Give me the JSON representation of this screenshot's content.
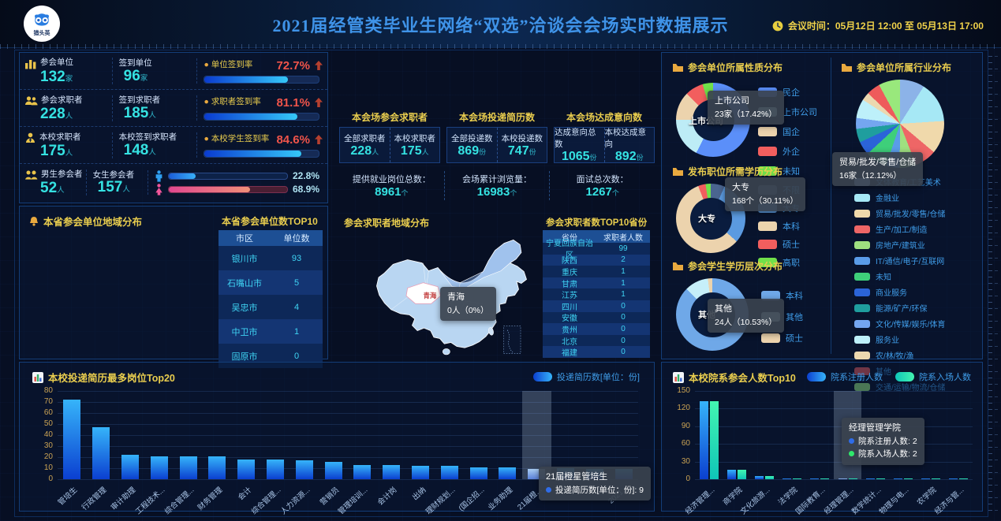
{
  "header": {
    "logo_text": "猎头英",
    "title": "2021届经管类毕业生网络“双选”洽谈会会场实时数据展示",
    "meeting_time": "会议时间：05月12日 12:00 至 05月13日 17:00"
  },
  "stats": {
    "rows": [
      {
        "icon": "chart-bars-icon",
        "label1": "参会单位",
        "value1": "132",
        "unit1": "家",
        "label2": "签到单位",
        "value2": "96",
        "unit2": "家",
        "rate_label": "单位签到率",
        "rate": "72.7%",
        "bar_pct": 72.7
      },
      {
        "icon": "users-icon",
        "label1": "参会求职者",
        "value1": "228",
        "unit1": "人",
        "label2": "签到求职者",
        "value2": "185",
        "unit2": "人",
        "rate_label": "求职者签到率",
        "rate": "81.1%",
        "bar_pct": 81.1
      },
      {
        "icon": "person-tie-icon",
        "label1": "本校求职者",
        "value1": "175",
        "unit1": "人",
        "label2": "本校签到求职者",
        "value2": "148",
        "unit2": "人",
        "rate_label": "本校学生签到率",
        "rate": "84.6%",
        "bar_pct": 84.6
      },
      {
        "icon": "male-female-icon",
        "label1": "男生参会者",
        "value1": "52",
        "unit1": "人",
        "label2": "女生参会者",
        "value2": "157",
        "unit2": "人",
        "gender": {
          "male_pct": "22.8%",
          "male_bar": 22.8,
          "female_pct": "68.9%",
          "female_bar": 68.9
        }
      }
    ]
  },
  "session": {
    "groups": [
      {
        "title": "本会场参会求职者",
        "items": [
          {
            "label": "全部求职者",
            "value": "228",
            "unit": "人"
          },
          {
            "label": "本校求职者",
            "value": "175",
            "unit": "人"
          }
        ]
      },
      {
        "title": "本会场投递简历数",
        "items": [
          {
            "label": "全部投递数",
            "value": "869",
            "unit": "份"
          },
          {
            "label": "本校投递数",
            "value": "747",
            "unit": "份"
          }
        ]
      },
      {
        "title": "本会场达成意向数",
        "items": [
          {
            "label": "达成意向总数",
            "value": "1065",
            "unit": "份"
          },
          {
            "label": "本校达成意向",
            "value": "892",
            "unit": "份"
          }
        ]
      }
    ],
    "totals": [
      {
        "label": "提供就业岗位总数：",
        "value": "8961",
        "unit": "个"
      },
      {
        "label": "会场累计浏览量：",
        "value": "16983",
        "unit": "个"
      },
      {
        "label": "面试总次数：",
        "value": "1267",
        "unit": "个"
      }
    ]
  },
  "region_panel": {
    "title": "本省参会单位地域分布",
    "table_title": "本省参会单位数TOP10"
  },
  "map_panel": {
    "title": "参会求职者地域分布",
    "region_label": "青海",
    "table_title": "参会求职者数TOP10省份",
    "tooltip_title": "青海",
    "tooltip_value": "0人（0%）"
  },
  "nature_panel": {
    "title": "参会单位所属性质分布",
    "center_label": "上市公司",
    "tooltip_title": "上市公司",
    "tooltip_value": "23家（17.42%）"
  },
  "degree_panel": {
    "title": "发布职位所需学历分布",
    "center_label": "大专",
    "tooltip_title": "大专",
    "tooltip_value": "168个（30.11%）"
  },
  "student_panel": {
    "title": "参会学生学历层次分布",
    "center_label": "其他",
    "tooltip_title": "其他",
    "tooltip_value": "24人（10.53%）"
  },
  "industry_panel": {
    "title": "参会单位所属行业分布",
    "tooltip_title": "贸易/批发/零售/仓储",
    "tooltip_value": "16家（12.12%）"
  },
  "jobs_panel": {
    "title": "本校投递简历最多岗位Top20",
    "tooltip_title": "21届橙星管培生",
    "tooltip_value": "投递简历数[单位：份]: 9"
  },
  "faculty_panel": {
    "title": "本校院系参会人数Top10",
    "tooltip_title": "经理管理学院",
    "tooltip_lines": [
      "院系注册人数: 2",
      "院系入场人数: 2"
    ]
  },
  "chart_data": [
    {
      "id": "region-table",
      "type": "table",
      "title": "本省参会单位数TOP10",
      "columns": [
        "市区",
        "单位数"
      ],
      "rows": [
        [
          "银川市",
          93
        ],
        [
          "石嘴山市",
          5
        ],
        [
          "吴忠市",
          4
        ],
        [
          "中卫市",
          1
        ],
        [
          "固原市",
          0
        ]
      ]
    },
    {
      "id": "province-table",
      "type": "table",
      "title": "参会求职者数TOP10省份",
      "columns": [
        "省份",
        "求职者人数"
      ],
      "rows": [
        [
          "宁夏回族自治区",
          99
        ],
        [
          "陕西",
          2
        ],
        [
          "重庆",
          1
        ],
        [
          "甘肃",
          1
        ],
        [
          "江苏",
          1
        ],
        [
          "四川",
          0
        ],
        [
          "安徽",
          0
        ],
        [
          "贵州",
          0
        ],
        [
          "北京",
          0
        ],
        [
          "福建",
          0
        ]
      ]
    },
    {
      "id": "unit-nature",
      "type": "pie",
      "title": "参会单位所属性质分布",
      "donut": true,
      "labels": [
        "民企",
        "上市公司",
        "国企",
        "外企",
        "未知"
      ],
      "values": [
        57.5,
        17.42,
        12.5,
        8,
        4.58
      ],
      "colors": [
        "#5b8ff9",
        "#bdecf6",
        "#ecd3ad",
        "#f25e5e",
        "#71e04a"
      ],
      "annotation": "上市公司 23家（17.42%）"
    },
    {
      "id": "job-degree",
      "type": "pie",
      "title": "发布职位所需学历分布",
      "donut": true,
      "labels": [
        "不限",
        "大专",
        "本科",
        "硕士",
        "高职"
      ],
      "values": [
        6.5,
        30.11,
        57.5,
        3.5,
        2.39
      ],
      "colors": [
        "#4a6590",
        "#5b9ae0",
        "#ecd3ad",
        "#f25e5e",
        "#71e04a"
      ],
      "annotation": "大专 168个（30.11%）"
    },
    {
      "id": "student-degree",
      "type": "pie",
      "title": "参会学生学历层次分布",
      "donut": true,
      "labels": [
        "本科",
        "其他",
        "硕士"
      ],
      "values": [
        87.5,
        10.53,
        1.97
      ],
      "colors": [
        "#6fa8e8",
        "#c6eff9",
        "#ecd3ad"
      ],
      "annotation": "其他 24人（10.53%）"
    },
    {
      "id": "unit-industry",
      "type": "pie",
      "title": "参会单位所属行业分布",
      "donut": false,
      "labels": [
        "文体教育/工艺美术",
        "金融业",
        "贸易/批发/零售/仓储",
        "生产/加工/制造",
        "房地产/建筑业",
        "IT/通信/电子/互联网",
        "未知",
        "商业服务",
        "能源/矿产/环保",
        "文化/传媒/娱乐/体育",
        "服务业",
        "农/林/牧/渔",
        "其他",
        "交通/运输/物流/仓储"
      ],
      "values": [
        9,
        15,
        12.12,
        8,
        6,
        5,
        8,
        5,
        5,
        4,
        7,
        3,
        5,
        7.88
      ],
      "colors": [
        "#8cb3e8",
        "#a6e8f5",
        "#f0d9ab",
        "#ee6666",
        "#9fe080",
        "#5a9ce8",
        "#3ecf7a",
        "#2b64d8",
        "#1f9e9e",
        "#74a6f0",
        "#bdf0fa",
        "#ecd8b0",
        "#ee5b5b",
        "#99e87c"
      ],
      "annotation": "贸易/批发/零售/仓储 16家（12.12%）"
    },
    {
      "id": "top-jobs",
      "type": "bar",
      "title": "本校投递简历最多岗位Top20",
      "legend": [
        "投递简历数[单位：份]"
      ],
      "ylim": [
        0,
        80
      ],
      "yticks": [
        0,
        10,
        20,
        30,
        40,
        50,
        60,
        70,
        80
      ],
      "categories": [
        "管培生",
        "行政管理",
        "审计助理",
        "工程技术...",
        "综合管理...",
        "财务管理",
        "会计",
        "综合管理...",
        "人力资源...",
        "营销员",
        "管理培训...",
        "会计岗",
        "出纳",
        "理财规划...",
        "(国企招...",
        "业务助理",
        "21届橙...",
        "",
        "",
        "2021..."
      ],
      "values": [
        72,
        47,
        22,
        21,
        21,
        21,
        18,
        18,
        17,
        16,
        13,
        13,
        12,
        12,
        11,
        11,
        9,
        10,
        9,
        9
      ],
      "highlight_index": 16
    },
    {
      "id": "faculty",
      "type": "bar",
      "title": "本校院系参会人数Top10",
      "legend": [
        "院系注册人数",
        "院系入场人数"
      ],
      "ylim": [
        0,
        150
      ],
      "yticks": [
        0,
        30,
        60,
        90,
        120,
        150
      ],
      "categories": [
        "经济管理...",
        "商学院",
        "文化旅游...",
        "法学院",
        "国际教育...",
        "经理管理...",
        "数学统计...",
        "物理与电...",
        "农学院",
        "经济与管..."
      ],
      "series": [
        {
          "name": "院系注册人数",
          "values": [
            132,
            16,
            5,
            2,
            2,
            2,
            2,
            2,
            1,
            1
          ]
        },
        {
          "name": "院系入场人数",
          "values": [
            132,
            16,
            5,
            2,
            2,
            2,
            2,
            2,
            1,
            1
          ]
        }
      ],
      "highlight_index": 5
    }
  ]
}
